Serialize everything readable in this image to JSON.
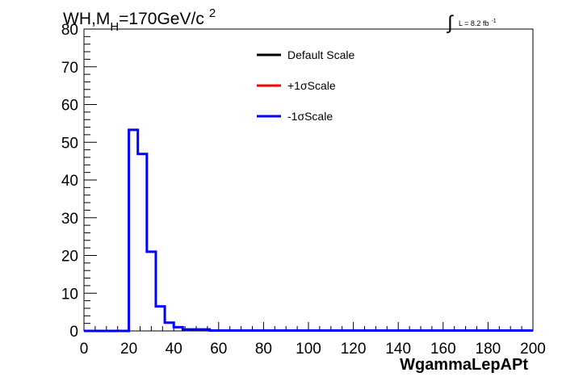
{
  "chart_data": {
    "type": "step",
    "title_parts": {
      "base": "WH,M",
      "sub": "H",
      "mid": "=170GeV/c",
      "sup": "2"
    },
    "lumi_label": {
      "text": "L = 8.2 fb",
      "sup": "-1"
    },
    "xlabel": "WgammaLepAPt",
    "ylabel": "",
    "xlim": [
      0,
      200
    ],
    "ylim": [
      0,
      80
    ],
    "x_ticks": [
      0,
      20,
      40,
      60,
      80,
      100,
      120,
      140,
      160,
      180,
      200
    ],
    "y_ticks": [
      0,
      10,
      20,
      30,
      40,
      50,
      60,
      70,
      80
    ],
    "bin_width": 4,
    "legend_placement": "top-center",
    "legend": [
      {
        "name": "Default Scale",
        "color": "#000000"
      },
      {
        "name": "+1σScale",
        "color": "#ff0000"
      },
      {
        "name": "-1σScale",
        "color": "#0000ff"
      }
    ],
    "series": [
      {
        "name": "-1σScale",
        "color": "#0000ff",
        "bins": [
          {
            "x0": 20,
            "x1": 24,
            "y": 53.3
          },
          {
            "x0": 24,
            "x1": 28,
            "y": 46.9
          },
          {
            "x0": 28,
            "x1": 32,
            "y": 21.0
          },
          {
            "x0": 32,
            "x1": 36,
            "y": 6.5
          },
          {
            "x0": 36,
            "x1": 40,
            "y": 2.2
          },
          {
            "x0": 40,
            "x1": 44,
            "y": 1.0
          },
          {
            "x0": 44,
            "x1": 56,
            "y": 0.4
          },
          {
            "x0": 56,
            "x1": 200,
            "y": 0.1
          }
        ]
      }
    ]
  }
}
